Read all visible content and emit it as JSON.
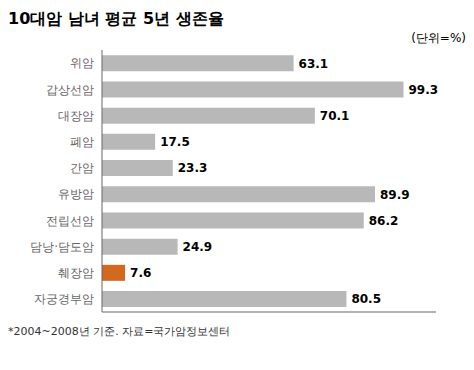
{
  "chart_data": {
    "type": "bar",
    "orientation": "horizontal",
    "title": "10대암 남녀 평균 5년 생존율",
    "subtitle": "(단위=%)",
    "annotations": [
      "*2004~2008년 기준. 자료=국가암정보센터"
    ],
    "categories": [
      "위암",
      "갑상선암",
      "대장암",
      "폐암",
      "간암",
      "유방암",
      "전립선암",
      "담낭·담도암",
      "췌장암",
      "자궁경부암"
    ],
    "values": [
      63.1,
      99.3,
      70.1,
      17.5,
      23.3,
      89.9,
      86.2,
      24.9,
      7.6,
      80.5
    ],
    "colors": [
      "#b8b8b8",
      "#b8b8b8",
      "#b8b8b8",
      "#b8b8b8",
      "#b8b8b8",
      "#b8b8b8",
      "#b8b8b8",
      "#b8b8b8",
      "#d2691e",
      "#b8b8b8"
    ],
    "xlim": [
      0,
      110
    ],
    "data_labels": true,
    "tick_labels": "y",
    "grid": false
  }
}
